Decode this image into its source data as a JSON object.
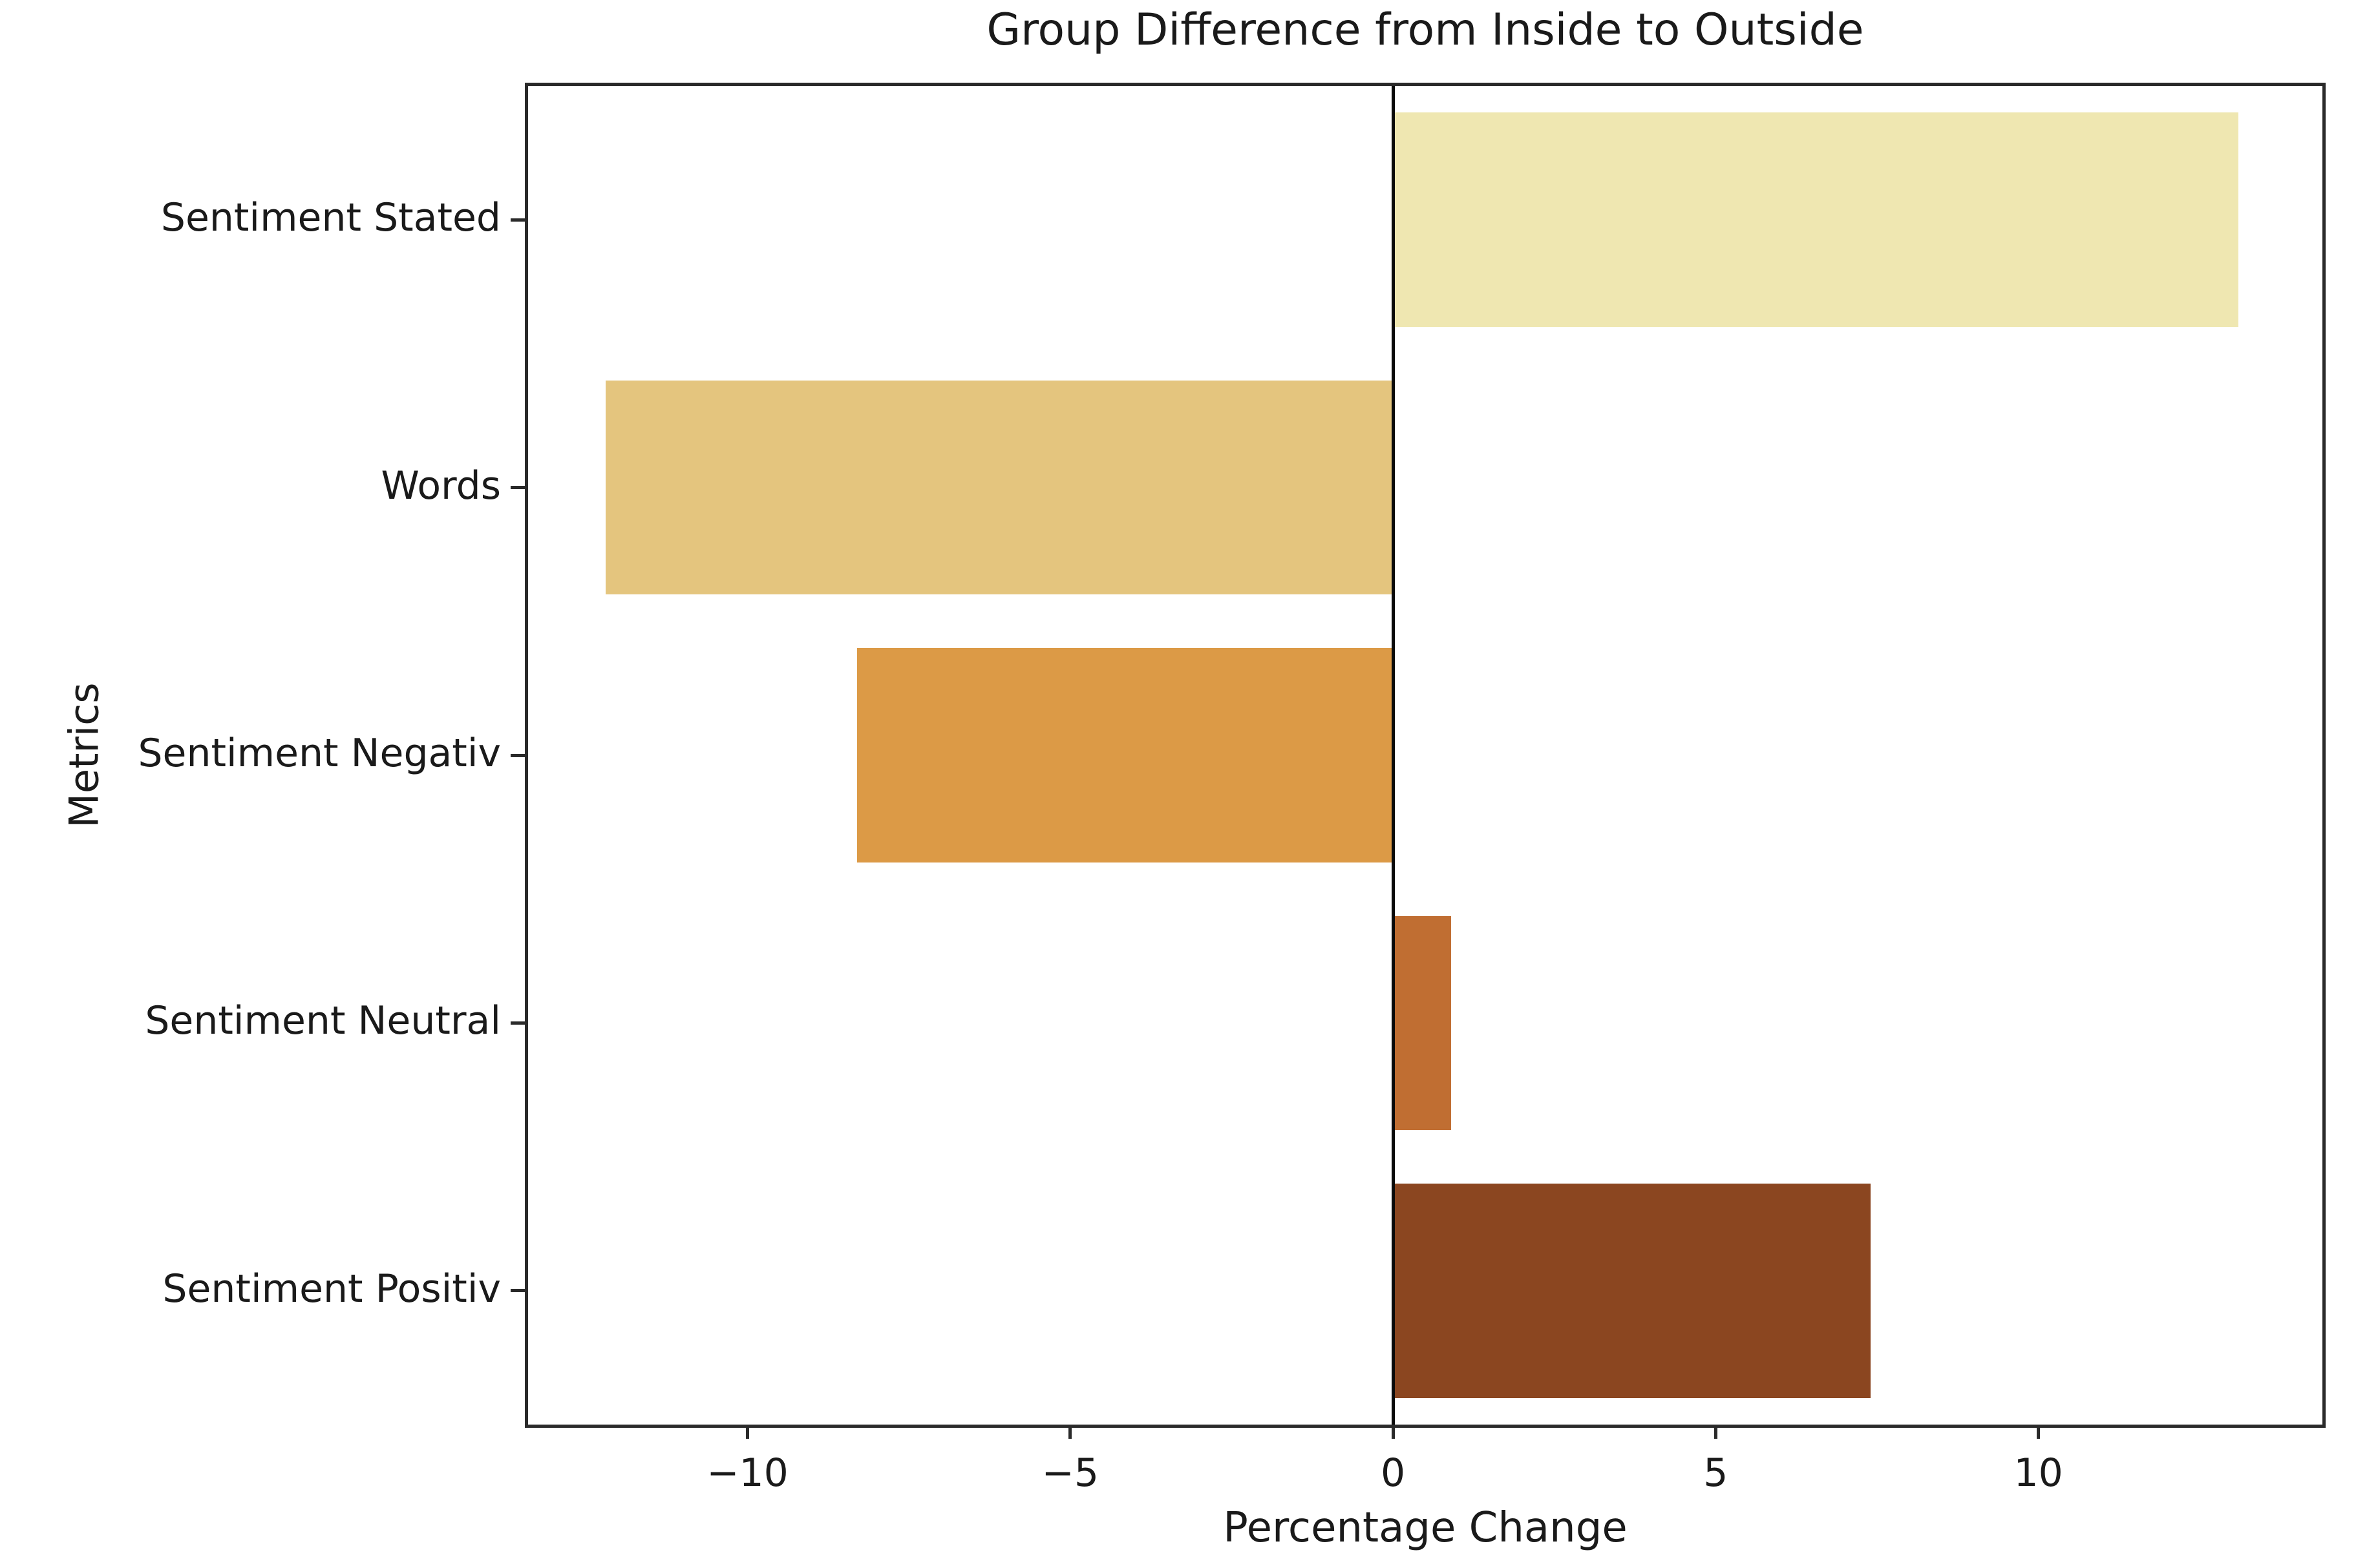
{
  "chart_data": {
    "type": "bar",
    "orientation": "horizontal",
    "title": "Group Difference from Inside to Outside",
    "xlabel": "Percentage Change",
    "ylabel": "Metrics",
    "categories": [
      "Sentiment Stated",
      "Words",
      "Sentiment Negativ",
      "Sentiment Neutral",
      "Sentiment Positiv"
    ],
    "values": [
      13.1,
      -12.2,
      -8.3,
      0.9,
      7.4
    ],
    "bar_colors": [
      "#EFE7B1",
      "#E4C57E",
      "#DC9A46",
      "#C06E32",
      "#8B4620"
    ],
    "xlim": [
      -13.4,
      14.4
    ],
    "x_ticks": [
      -10,
      -5,
      0,
      5,
      10
    ],
    "x_tick_labels": [
      "−10",
      "−5",
      "0",
      "5",
      "10"
    ],
    "zero_line": true,
    "grid": false,
    "legend_position": "none",
    "background_color": "#ffffff",
    "spine_color": "#2a2a2a",
    "bar_fraction": 0.8
  }
}
